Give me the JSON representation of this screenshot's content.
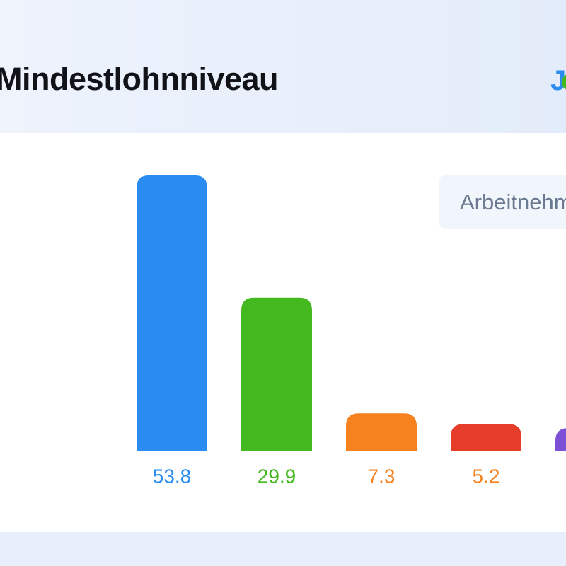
{
  "chart_data": {
    "type": "bar",
    "title": "Mindestlohnniveau",
    "logo": "J",
    "legend": "Arbeitnehm",
    "values": [
      53.8,
      29.9,
      7.3,
      5.2,
      4.4
    ],
    "colors": [
      "#2a8cf0",
      "#44b81f",
      "#f5821f",
      "#e63e2b",
      "#7b4fd6"
    ],
    "label_colors": [
      "#2a8cf0",
      "#44b81f",
      "#f5821f",
      "#f5821f",
      "#7b4fd6"
    ],
    "ylim": [
      0,
      60
    ]
  }
}
